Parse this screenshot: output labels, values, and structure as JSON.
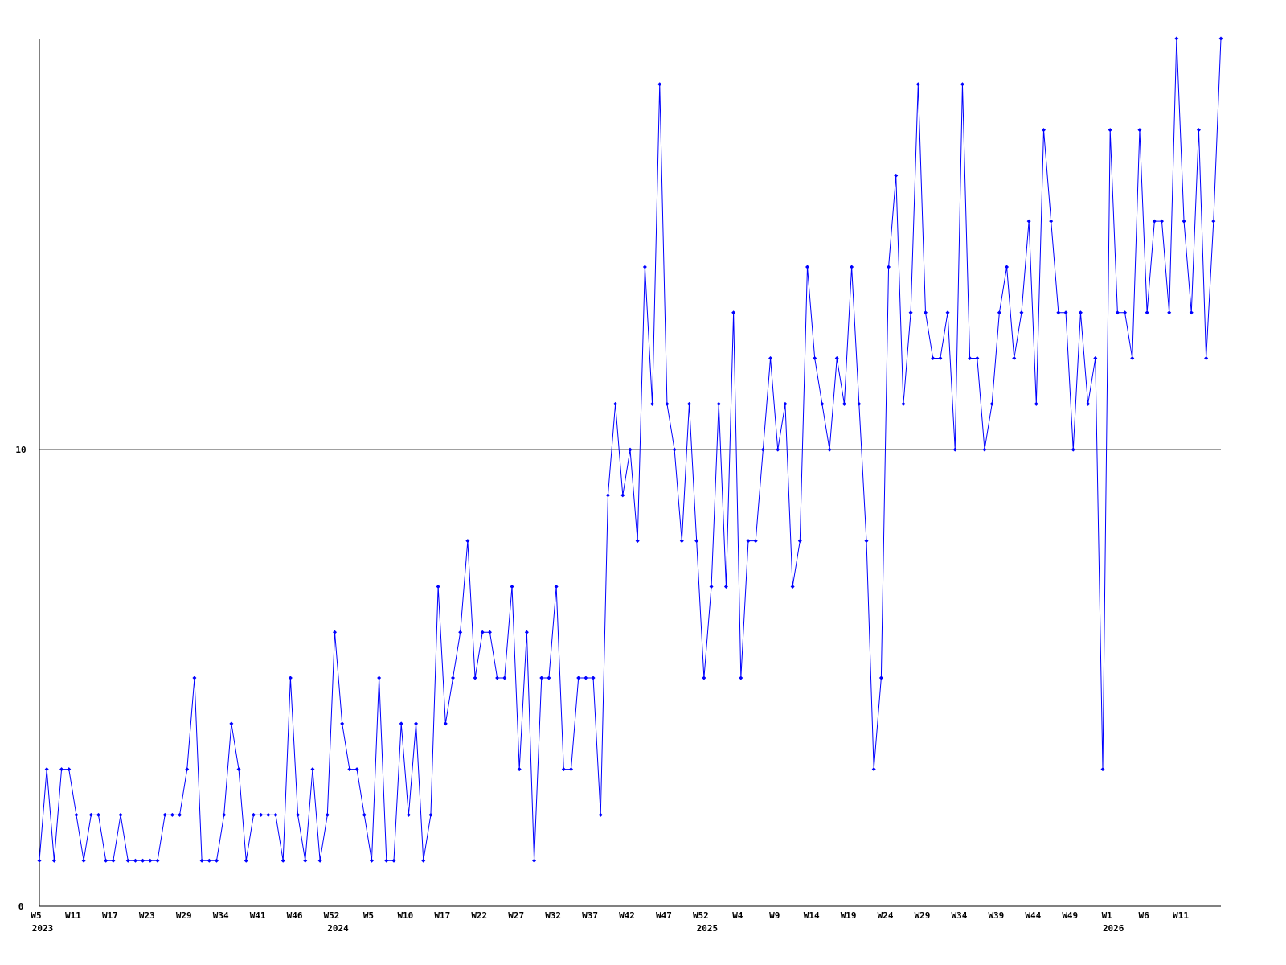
{
  "chart_data": {
    "type": "line",
    "categories": [
      "W5",
      null,
      null,
      null,
      null,
      "W11",
      null,
      null,
      null,
      null,
      "W17",
      null,
      null,
      null,
      null,
      "W23",
      null,
      null,
      null,
      null,
      "W29",
      null,
      null,
      null,
      null,
      "W34",
      null,
      null,
      null,
      null,
      "W41",
      null,
      null,
      null,
      null,
      "W46",
      null,
      null,
      null,
      null,
      "W52",
      null,
      null,
      null,
      null,
      "W5",
      null,
      null,
      null,
      null,
      "W10",
      null,
      null,
      null,
      null,
      "W17",
      null,
      null,
      null,
      null,
      "W22",
      null,
      null,
      null,
      null,
      "W27",
      null,
      null,
      null,
      null,
      "W32",
      null,
      null,
      null,
      null,
      "W37",
      null,
      null,
      null,
      null,
      "W42",
      null,
      null,
      null,
      null,
      "W47",
      null,
      null,
      null,
      null,
      "W52",
      null,
      null,
      null,
      null,
      "W4",
      null,
      null,
      null,
      null,
      "W9",
      null,
      null,
      null,
      null,
      "W14",
      null,
      null,
      null,
      null,
      "W19",
      null,
      null,
      null,
      null,
      "W24",
      null,
      null,
      null,
      null,
      "W29",
      null,
      null,
      null,
      null,
      "W34",
      null,
      null,
      null,
      null,
      "W39",
      null,
      null,
      null,
      null,
      "W44",
      null,
      null,
      null,
      null,
      "W49",
      null,
      null,
      null,
      null,
      "W1",
      null,
      null,
      null,
      null,
      "W6",
      null,
      null,
      null,
      null,
      "W11",
      null,
      null,
      null,
      null,
      null
    ],
    "category_years": [
      "2023",
      null,
      null,
      null,
      null,
      null,
      null,
      null,
      null,
      null,
      null,
      null,
      null,
      null,
      null,
      null,
      null,
      null,
      null,
      null,
      null,
      null,
      null,
      null,
      null,
      null,
      null,
      null,
      null,
      null,
      null,
      null,
      null,
      null,
      null,
      null,
      null,
      null,
      null,
      null,
      "2024",
      null,
      null,
      null,
      null,
      null,
      null,
      null,
      null,
      null,
      null,
      null,
      null,
      null,
      null,
      null,
      null,
      null,
      null,
      null,
      null,
      null,
      null,
      null,
      null,
      null,
      null,
      null,
      null,
      null,
      null,
      null,
      null,
      null,
      null,
      null,
      null,
      null,
      null,
      null,
      null,
      null,
      null,
      null,
      null,
      null,
      null,
      null,
      null,
      null,
      "2025",
      null,
      null,
      null,
      null,
      null,
      null,
      null,
      null,
      null,
      null,
      null,
      null,
      null,
      null,
      null,
      null,
      null,
      null,
      null,
      null,
      null,
      null,
      null,
      null,
      null,
      null,
      null,
      null,
      null,
      null,
      null,
      null,
      null,
      null,
      null,
      null,
      null,
      null,
      null,
      null,
      null,
      null,
      null,
      null,
      null,
      null,
      null,
      null,
      null,
      null,
      null,
      null,
      null,
      null,
      "2026",
      null,
      null,
      null,
      null,
      null,
      null,
      null,
      null,
      null,
      null,
      null,
      null,
      null,
      null,
      null
    ],
    "values": [
      1,
      3,
      1,
      3,
      3,
      2,
      1,
      2,
      2,
      1,
      1,
      2,
      1,
      1,
      1,
      1,
      1,
      2,
      2,
      2,
      3,
      5,
      1,
      1,
      1,
      2,
      4,
      3,
      1,
      2,
      2,
      2,
      2,
      1,
      5,
      2,
      1,
      3,
      1,
      2,
      6,
      4,
      3,
      3,
      2,
      1,
      5,
      1,
      1,
      4,
      2,
      4,
      1,
      2,
      7,
      4,
      5,
      6,
      8,
      5,
      6,
      6,
      5,
      5,
      7,
      3,
      6,
      1,
      5,
      5,
      7,
      3,
      3,
      5,
      5,
      5,
      2,
      9,
      11,
      9,
      10,
      8,
      14,
      11,
      18,
      11,
      10,
      8,
      11,
      8,
      5,
      7,
      11,
      7,
      13,
      5,
      8,
      8,
      10,
      12,
      10,
      11,
      7,
      8,
      14,
      12,
      11,
      10,
      12,
      11,
      14,
      11,
      8,
      3,
      5,
      14,
      16,
      11,
      13,
      18,
      13,
      12,
      12,
      13,
      10,
      18,
      12,
      12,
      10,
      11,
      13,
      14,
      12,
      13,
      15,
      11,
      17,
      15,
      13,
      13,
      10,
      13,
      11,
      12,
      3,
      17,
      13,
      13,
      12,
      17,
      13,
      15,
      15,
      13,
      19,
      15,
      13,
      17,
      12,
      15,
      19
    ],
    "color": "#0000ff",
    "ylim": [
      0,
      19
    ],
    "yticks": [
      0,
      10
    ],
    "grid": true
  }
}
